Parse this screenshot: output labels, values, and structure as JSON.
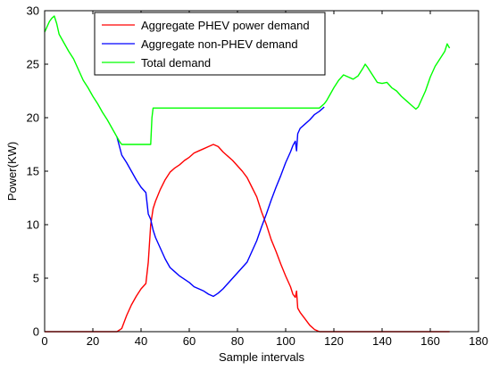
{
  "chart_data": {
    "type": "line",
    "title": "",
    "xlabel": "Sample intervals",
    "ylabel": "Power(KW)",
    "xlim": [
      0,
      180
    ],
    "ylim": [
      0,
      30
    ],
    "xticks": [
      0,
      20,
      40,
      60,
      80,
      100,
      120,
      140,
      160,
      180
    ],
    "yticks": [
      0,
      5,
      10,
      15,
      20,
      25,
      30
    ],
    "grid": false,
    "legend_position": "top-left",
    "series": [
      {
        "name": "Aggregate PHEV power demand",
        "color": "#ff0000",
        "x": [
          0,
          20,
          30,
          32,
          34,
          36,
          38,
          40,
          42,
          43,
          44,
          45,
          46,
          48,
          50,
          52,
          54,
          56,
          58,
          60,
          62,
          64,
          66,
          68,
          70,
          72,
          74,
          76,
          78,
          80,
          82,
          84,
          86,
          88,
          90,
          92,
          94,
          96,
          98,
          100,
          102,
          103,
          104,
          104.5,
          105,
          106,
          108,
          110,
          112,
          114,
          116,
          120,
          140,
          160,
          168
        ],
        "y": [
          0,
          0,
          0,
          0.3,
          1.5,
          2.5,
          3.3,
          4.0,
          4.5,
          6.5,
          10.0,
          11.5,
          12.2,
          13.3,
          14.2,
          14.9,
          15.3,
          15.6,
          16.0,
          16.3,
          16.7,
          16.9,
          17.1,
          17.3,
          17.5,
          17.3,
          16.8,
          16.4,
          16.0,
          15.5,
          15.0,
          14.4,
          13.5,
          12.6,
          11.2,
          10.0,
          8.6,
          7.5,
          6.3,
          5.2,
          4.2,
          3.5,
          3.2,
          3.8,
          2.2,
          1.8,
          1.2,
          0.6,
          0.2,
          0,
          0,
          0,
          0,
          0,
          0
        ]
      },
      {
        "name": "Aggregate non-PHEV demand",
        "color": "#0000ff",
        "x": [
          30,
          32,
          34,
          36,
          38,
          40,
          42,
          43,
          44,
          45,
          46,
          48,
          50,
          52,
          54,
          56,
          58,
          60,
          62,
          64,
          66,
          68,
          70,
          72,
          74,
          76,
          78,
          80,
          82,
          84,
          86,
          88,
          90,
          92,
          94,
          96,
          98,
          100,
          102,
          103,
          104,
          104.5,
          105,
          106,
          108,
          110,
          112,
          114,
          116
        ],
        "y": [
          18.2,
          16.5,
          15.8,
          15.0,
          14.2,
          13.5,
          13.0,
          11.0,
          10.5,
          9.5,
          8.8,
          7.8,
          6.8,
          6.0,
          5.6,
          5.2,
          4.9,
          4.6,
          4.2,
          4.0,
          3.8,
          3.5,
          3.3,
          3.6,
          4.0,
          4.5,
          5.0,
          5.5,
          6.0,
          6.5,
          7.5,
          8.5,
          9.8,
          11.0,
          12.3,
          13.5,
          14.6,
          15.8,
          16.8,
          17.4,
          17.8,
          16.9,
          18.5,
          19.0,
          19.4,
          19.8,
          20.3,
          20.6,
          21.0
        ]
      },
      {
        "name": "Total demand",
        "color": "#00ff00",
        "x": [
          0,
          1,
          2,
          3,
          4,
          5,
          6,
          8,
          10,
          12,
          14,
          16,
          18,
          20,
          22,
          24,
          26,
          28,
          30,
          31,
          32,
          34,
          36,
          38,
          40,
          42,
          43,
          44,
          44.5,
          45,
          60,
          80,
          100,
          114,
          116,
          117,
          118,
          120,
          122,
          124,
          126,
          128,
          130,
          132,
          133,
          134,
          136,
          138,
          140,
          142,
          144,
          146,
          148,
          150,
          152,
          154,
          155,
          156,
          158,
          160,
          162,
          164,
          166,
          167,
          168
        ],
        "y": [
          28.0,
          28.5,
          29.0,
          29.3,
          29.5,
          28.8,
          27.8,
          27.0,
          26.2,
          25.5,
          24.5,
          23.5,
          22.8,
          22.0,
          21.3,
          20.5,
          19.8,
          19.0,
          18.2,
          17.8,
          17.5,
          17.5,
          17.5,
          17.5,
          17.5,
          17.5,
          17.5,
          17.5,
          20.0,
          20.9,
          20.9,
          20.9,
          20.9,
          20.9,
          21.3,
          21.6,
          22.0,
          22.8,
          23.5,
          24.0,
          23.8,
          23.6,
          23.9,
          24.6,
          25.0,
          24.7,
          24.0,
          23.3,
          23.2,
          23.3,
          22.8,
          22.5,
          22.0,
          21.6,
          21.2,
          20.8,
          21.0,
          21.5,
          22.5,
          23.8,
          24.8,
          25.5,
          26.2,
          26.9,
          26.5
        ]
      }
    ]
  }
}
